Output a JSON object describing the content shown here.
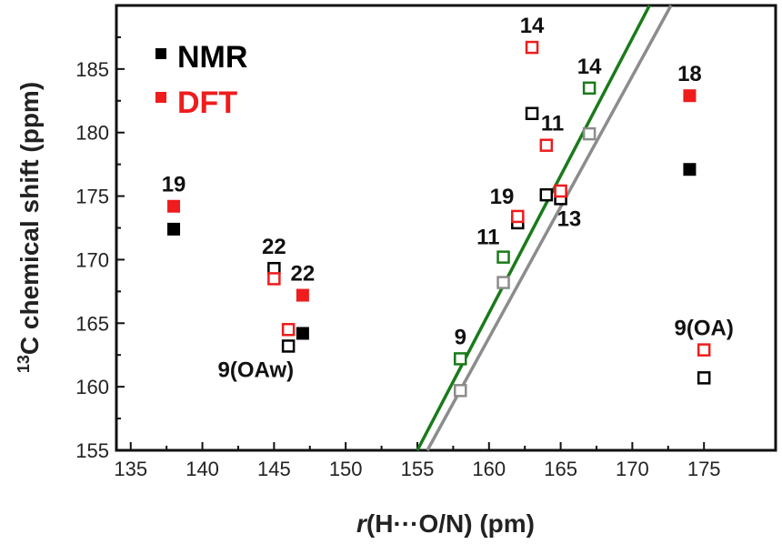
{
  "chart_data": {
    "type": "scatter",
    "xlabel_prefix": "r",
    "xlabel_rest": "(H···O/N) (pm)",
    "ylabel_sup": "13",
    "ylabel_rest": "C chemical shift (ppm)",
    "xlim": [
      134,
      180
    ],
    "ylim": [
      155,
      190
    ],
    "x_ticks": [
      135,
      140,
      145,
      150,
      155,
      160,
      165,
      170,
      175
    ],
    "y_ticks": [
      155,
      160,
      165,
      170,
      175,
      180,
      185
    ],
    "legend": [
      {
        "label": "NMR",
        "color": "#000000"
      },
      {
        "label": "DFT",
        "color": "#ee1c1c"
      }
    ],
    "series": [
      {
        "name": "NMR",
        "marker": "filled-square",
        "color": "#000000",
        "points": [
          {
            "x": 138,
            "y": 172.4
          },
          {
            "x": 147,
            "y": 164.2
          },
          {
            "x": 174,
            "y": 177.1
          }
        ]
      },
      {
        "name": "DFT",
        "marker": "filled-square",
        "color": "#ee1c1c",
        "points": [
          {
            "x": 138,
            "y": 174.2
          },
          {
            "x": 147,
            "y": 167.2
          },
          {
            "x": 174,
            "y": 182.9
          }
        ]
      },
      {
        "marker": "open-square",
        "color": "#000000",
        "points": [
          {
            "x": 145,
            "y": 169.3
          },
          {
            "x": 146,
            "y": 163.2
          },
          {
            "x": 162,
            "y": 172.9
          },
          {
            "x": 163,
            "y": 181.5
          },
          {
            "x": 164,
            "y": 175.1
          },
          {
            "x": 165,
            "y": 174.8
          },
          {
            "x": 175,
            "y": 160.7
          }
        ]
      },
      {
        "marker": "open-square",
        "color": "#ee1c1c",
        "points": [
          {
            "x": 145,
            "y": 168.5
          },
          {
            "x": 146,
            "y": 164.5
          },
          {
            "x": 162,
            "y": 173.4
          },
          {
            "x": 163,
            "y": 186.7
          },
          {
            "x": 164,
            "y": 179.0
          },
          {
            "x": 165,
            "y": 175.4
          },
          {
            "x": 175,
            "y": 162.9
          }
        ]
      },
      {
        "marker": "open-square",
        "color": "#1a7a1a",
        "points": [
          {
            "x": 158,
            "y": 162.2
          },
          {
            "x": 161,
            "y": 170.2
          },
          {
            "x": 167,
            "y": 183.5
          }
        ]
      },
      {
        "marker": "open-square",
        "color": "#8c8c8c",
        "points": [
          {
            "x": 158,
            "y": 159.7
          },
          {
            "x": 161,
            "y": 168.2
          },
          {
            "x": 167,
            "y": 179.9
          }
        ]
      }
    ],
    "fit_lines": [
      {
        "color": "#1a7a1a",
        "x": [
          155.0,
          171.2
        ],
        "y": [
          155.0,
          190.0
        ]
      },
      {
        "color": "#8c8c8c",
        "x": [
          155.7,
          172.7
        ],
        "y": [
          155.0,
          190.0
        ]
      }
    ],
    "annotations": [
      {
        "text": "19",
        "x": 138,
        "y": 174.2,
        "color": "#111111",
        "pos": "above"
      },
      {
        "text": "22",
        "x": 145,
        "y": 169.3,
        "color": "#111111",
        "pos": "above"
      },
      {
        "text": "22",
        "x": 147,
        "y": 167.2,
        "color": "#111111",
        "pos": "above"
      },
      {
        "text": "9(OAw)",
        "x": 146,
        "y": 163.2,
        "color": "#111111",
        "pos": "below-left"
      },
      {
        "text": "9",
        "x": 158,
        "y": 162.2,
        "color": "#111111",
        "pos": "above"
      },
      {
        "text": "11",
        "x": 161,
        "y": 170.2,
        "color": "#111111",
        "pos": "above-left"
      },
      {
        "text": "19",
        "x": 162,
        "y": 173.4,
        "color": "#111111",
        "pos": "above-left"
      },
      {
        "text": "13",
        "x": 165,
        "y": 174.8,
        "color": "#111111",
        "pos": "below-right"
      },
      {
        "text": "11",
        "x": 164,
        "y": 179.0,
        "color": "#111111",
        "pos": "above-right"
      },
      {
        "text": "14",
        "x": 163,
        "y": 186.7,
        "color": "#111111",
        "pos": "above"
      },
      {
        "text": "14",
        "x": 167,
        "y": 183.5,
        "color": "#111111",
        "pos": "above"
      },
      {
        "text": "18",
        "x": 174,
        "y": 182.9,
        "color": "#111111",
        "pos": "above"
      },
      {
        "text": "9(OA)",
        "x": 175,
        "y": 162.9,
        "color": "#111111",
        "pos": "above"
      }
    ]
  }
}
